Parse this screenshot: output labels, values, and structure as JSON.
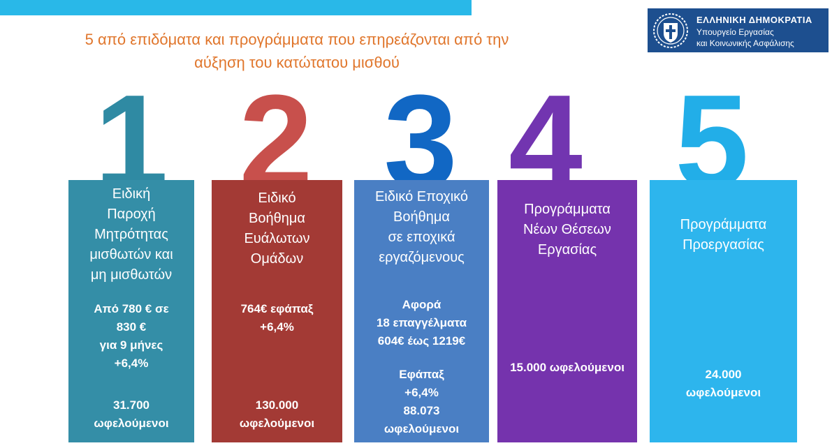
{
  "slide": {
    "title_line1": "5 από επιδόματα και προγράμματα που επηρεάζονται από την",
    "title_line2": "αύξηση του κατώτατου μισθού"
  },
  "logo": {
    "line1": "ΕΛΛΗΝΙΚΗ ΔΗΜΟΚΡΑΤΙΑ",
    "line2": "Υπουργείο Εργασίας",
    "line3": "και Κοινωνικής Ασφάλισης",
    "icon": "greek-emblem-icon",
    "color": "#1d4f8f"
  },
  "colors": {
    "accent_bar": "#29b8e8",
    "title": "#e0762c"
  },
  "cards": [
    {
      "number": "1",
      "number_color": "#2f8aa3",
      "color": "#348ea7",
      "heading": [
        "Ειδική",
        "Παροχή",
        "Μητρότητας",
        "μισθωτών και",
        "μη μισθωτών"
      ],
      "details": [
        "Από 780 € σε",
        "830 €",
        "για 9 μήνες",
        "+6,4%"
      ],
      "beneficiaries": [
        "31.700",
        "ωφελούμενοι"
      ]
    },
    {
      "number": "2",
      "number_color": "#c8504c",
      "color": "#a33a35",
      "heading": [
        "Ειδικό",
        "Βοήθημα",
        "Ευάλωτων",
        "Ομάδων"
      ],
      "details": [
        "764€ εφάπαξ",
        "+6,4%"
      ],
      "beneficiaries": [
        "130.000",
        "ωφελούμενοι"
      ]
    },
    {
      "number": "3",
      "number_color": "#1167c4",
      "color": "#4a7fc4",
      "heading": [
        "Ειδικό Εποχικό",
        "Βοήθημα",
        "σε  εποχικά",
        "εργαζόμενους"
      ],
      "details": [
        "Αφορά",
        "18 επαγγέλματα",
        "604€ έως 1219€"
      ],
      "beneficiaries": [
        "Εφάπαξ",
        "+6,4%",
        "88.073",
        "ωφελούμενοι"
      ]
    },
    {
      "number": "4",
      "number_color": "#7235b0",
      "color": "#7533ad",
      "heading": [
        "Προγράμματα",
        "Νέων Θέσεων",
        "Εργασίας"
      ],
      "details": [],
      "beneficiaries": [
        "15.000 ωφελούμενοι"
      ]
    },
    {
      "number": "5",
      "number_color": "#22aee8",
      "color": "#2db5ed",
      "heading": [
        "Προγράμματα",
        "Προεργασίας"
      ],
      "details": [],
      "beneficiaries": [
        "24.000",
        "ωφελούμενοι"
      ]
    }
  ]
}
